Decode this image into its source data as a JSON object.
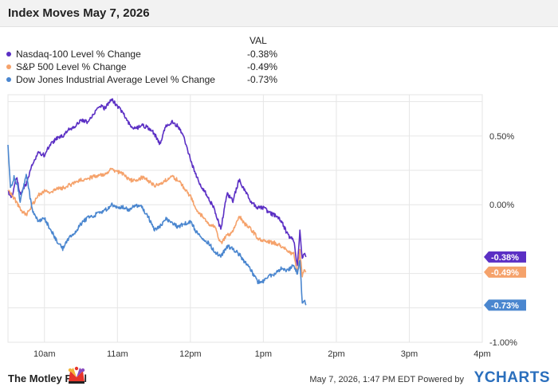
{
  "header": {
    "title": "Index Moves May 7, 2026"
  },
  "legend": {
    "value_header": "VAL",
    "items": [
      {
        "name": "Nasdaq-100 Level % Change",
        "value": "-0.38%",
        "color": "#5b2fc4"
      },
      {
        "name": "S&P 500 Level % Change",
        "value": "-0.49%",
        "color": "#f5a26b"
      },
      {
        "name": "Dow Jones Industrial Average Level % Change",
        "value": "-0.73%",
        "color": "#4a86cf"
      }
    ]
  },
  "chart_data": {
    "type": "line",
    "title": "Index Moves May 7, 2026",
    "xlabel": "",
    "ylabel": "",
    "x_ticks": [
      "10am",
      "11am",
      "12pm",
      "1pm",
      "2pm",
      "3pm",
      "4pm"
    ],
    "y_ticks": [
      "0.50%",
      "0.00%",
      "-1.00%"
    ],
    "ylim": [
      -1.0,
      0.8
    ],
    "grid": true,
    "legend_position": "top-left",
    "series": [
      {
        "name": "Nasdaq-100 Level % Change",
        "color": "#5b2fc4",
        "end_label": "-0.38%",
        "points": [
          [
            "09:30",
            0.1
          ],
          [
            "09:33",
            0.05
          ],
          [
            "09:37",
            0.2
          ],
          [
            "09:40",
            0.08
          ],
          [
            "09:45",
            0.15
          ],
          [
            "09:50",
            0.3
          ],
          [
            "09:55",
            0.38
          ],
          [
            "10:00",
            0.36
          ],
          [
            "10:05",
            0.44
          ],
          [
            "10:10",
            0.48
          ],
          [
            "10:15",
            0.5
          ],
          [
            "10:20",
            0.55
          ],
          [
            "10:25",
            0.57
          ],
          [
            "10:30",
            0.62
          ],
          [
            "10:35",
            0.6
          ],
          [
            "10:40",
            0.66
          ],
          [
            "10:45",
            0.72
          ],
          [
            "10:50",
            0.7
          ],
          [
            "10:55",
            0.77
          ],
          [
            "11:00",
            0.72
          ],
          [
            "11:05",
            0.66
          ],
          [
            "11:10",
            0.58
          ],
          [
            "11:15",
            0.55
          ],
          [
            "11:20",
            0.58
          ],
          [
            "11:25",
            0.56
          ],
          [
            "11:30",
            0.52
          ],
          [
            "11:35",
            0.44
          ],
          [
            "11:40",
            0.58
          ],
          [
            "11:45",
            0.6
          ],
          [
            "11:50",
            0.57
          ],
          [
            "11:55",
            0.48
          ],
          [
            "12:00",
            0.33
          ],
          [
            "12:05",
            0.2
          ],
          [
            "12:10",
            0.12
          ],
          [
            "12:15",
            0.05
          ],
          [
            "12:20",
            -0.04
          ],
          [
            "12:25",
            -0.18
          ],
          [
            "12:30",
            0.08
          ],
          [
            "12:35",
            0.03
          ],
          [
            "12:40",
            0.18
          ],
          [
            "12:45",
            0.1
          ],
          [
            "12:50",
            0.02
          ],
          [
            "12:55",
            -0.02
          ],
          [
            "13:00",
            -0.02
          ],
          [
            "13:05",
            -0.06
          ],
          [
            "13:10",
            -0.08
          ],
          [
            "13:15",
            -0.12
          ],
          [
            "13:20",
            -0.22
          ],
          [
            "13:25",
            -0.26
          ],
          [
            "13:28",
            -0.45
          ],
          [
            "13:30",
            -0.18
          ],
          [
            "13:32",
            -0.4
          ],
          [
            "13:34",
            -0.34
          ],
          [
            "13:35",
            -0.38
          ]
        ]
      },
      {
        "name": "S&P 500 Level % Change",
        "color": "#f5a26b",
        "end_label": "-0.49%",
        "points": [
          [
            "09:30",
            0.1
          ],
          [
            "09:35",
            0.05
          ],
          [
            "09:40",
            -0.03
          ],
          [
            "09:45",
            -0.08
          ],
          [
            "09:50",
            0.0
          ],
          [
            "09:55",
            0.07
          ],
          [
            "10:00",
            0.1
          ],
          [
            "10:05",
            0.09
          ],
          [
            "10:10",
            0.12
          ],
          [
            "10:15",
            0.12
          ],
          [
            "10:20",
            0.14
          ],
          [
            "10:25",
            0.16
          ],
          [
            "10:30",
            0.18
          ],
          [
            "10:35",
            0.19
          ],
          [
            "10:40",
            0.2
          ],
          [
            "10:45",
            0.22
          ],
          [
            "10:50",
            0.22
          ],
          [
            "10:55",
            0.26
          ],
          [
            "11:00",
            0.24
          ],
          [
            "11:05",
            0.22
          ],
          [
            "11:10",
            0.18
          ],
          [
            "11:15",
            0.17
          ],
          [
            "11:20",
            0.2
          ],
          [
            "11:25",
            0.18
          ],
          [
            "11:30",
            0.14
          ],
          [
            "11:35",
            0.14
          ],
          [
            "11:40",
            0.18
          ],
          [
            "11:45",
            0.2
          ],
          [
            "11:50",
            0.18
          ],
          [
            "11:55",
            0.12
          ],
          [
            "12:00",
            0.06
          ],
          [
            "12:05",
            -0.03
          ],
          [
            "12:10",
            -0.09
          ],
          [
            "12:15",
            -0.14
          ],
          [
            "12:20",
            -0.16
          ],
          [
            "12:25",
            -0.28
          ],
          [
            "12:30",
            -0.22
          ],
          [
            "12:35",
            -0.2
          ],
          [
            "12:40",
            -0.08
          ],
          [
            "12:45",
            -0.14
          ],
          [
            "12:50",
            -0.18
          ],
          [
            "12:55",
            -0.24
          ],
          [
            "13:00",
            -0.26
          ],
          [
            "13:05",
            -0.27
          ],
          [
            "13:10",
            -0.28
          ],
          [
            "13:15",
            -0.3
          ],
          [
            "13:20",
            -0.34
          ],
          [
            "13:25",
            -0.36
          ],
          [
            "13:28",
            -0.5
          ],
          [
            "13:30",
            -0.34
          ],
          [
            "13:32",
            -0.52
          ],
          [
            "13:34",
            -0.47
          ],
          [
            "13:35",
            -0.49
          ]
        ]
      },
      {
        "name": "Dow Jones Industrial Average Level % Change",
        "color": "#4a86cf",
        "end_label": "-0.73%",
        "points": [
          [
            "09:30",
            0.44
          ],
          [
            "09:32",
            0.12
          ],
          [
            "09:35",
            0.2
          ],
          [
            "09:38",
            0.14
          ],
          [
            "09:40",
            0.02
          ],
          [
            "09:45",
            0.22
          ],
          [
            "09:50",
            -0.04
          ],
          [
            "09:55",
            -0.12
          ],
          [
            "10:00",
            -0.1
          ],
          [
            "10:05",
            -0.18
          ],
          [
            "10:10",
            -0.26
          ],
          [
            "10:15",
            -0.32
          ],
          [
            "10:20",
            -0.24
          ],
          [
            "10:25",
            -0.2
          ],
          [
            "10:30",
            -0.14
          ],
          [
            "10:35",
            -0.1
          ],
          [
            "10:40",
            -0.08
          ],
          [
            "10:45",
            -0.06
          ],
          [
            "10:50",
            -0.04
          ],
          [
            "10:55",
            0.0
          ],
          [
            "11:00",
            -0.02
          ],
          [
            "11:05",
            -0.02
          ],
          [
            "11:10",
            -0.04
          ],
          [
            "11:15",
            0.0
          ],
          [
            "11:20",
            -0.02
          ],
          [
            "11:25",
            -0.08
          ],
          [
            "11:30",
            -0.18
          ],
          [
            "11:35",
            -0.16
          ],
          [
            "11:40",
            -0.1
          ],
          [
            "11:45",
            -0.14
          ],
          [
            "11:50",
            -0.16
          ],
          [
            "11:55",
            -0.14
          ],
          [
            "12:00",
            -0.12
          ],
          [
            "12:05",
            -0.2
          ],
          [
            "12:10",
            -0.24
          ],
          [
            "12:15",
            -0.28
          ],
          [
            "12:20",
            -0.34
          ],
          [
            "12:25",
            -0.38
          ],
          [
            "12:30",
            -0.3
          ],
          [
            "12:35",
            -0.32
          ],
          [
            "12:40",
            -0.36
          ],
          [
            "12:45",
            -0.42
          ],
          [
            "12:50",
            -0.48
          ],
          [
            "12:55",
            -0.56
          ],
          [
            "13:00",
            -0.56
          ],
          [
            "13:05",
            -0.52
          ],
          [
            "13:10",
            -0.5
          ],
          [
            "13:15",
            -0.46
          ],
          [
            "13:20",
            -0.48
          ],
          [
            "13:25",
            -0.44
          ],
          [
            "13:28",
            -0.5
          ],
          [
            "13:30",
            -0.4
          ],
          [
            "13:32",
            -0.72
          ],
          [
            "13:34",
            -0.7
          ],
          [
            "13:35",
            -0.73
          ]
        ]
      }
    ]
  },
  "footer": {
    "brand": "The Motley Fool",
    "credit": "May 7, 2026, 1:47 PM EDT Powered by",
    "provider": "YCHARTS"
  }
}
